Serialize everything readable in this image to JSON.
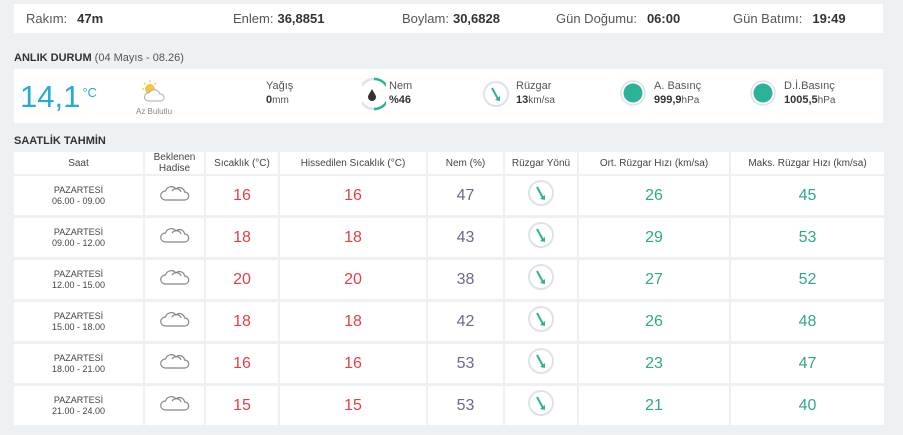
{
  "location": {
    "rakim_label": "Rakım:",
    "rakim_value": "47m",
    "enlem_label": "Enlem:",
    "enlem_value": "36,8851",
    "boylam_label": "Boylam:",
    "boylam_value": "30,6828",
    "gundogumu_label": "Gün Doğumu:",
    "gundogumu_value": "06:00",
    "gunbatimi_label": "Gün Batımı:",
    "gunbatimi_value": "19:49"
  },
  "current": {
    "title": "ANLIK DURUM",
    "subtitle": "(04 Mayıs - 08.26)",
    "temp": "14,1",
    "temp_unit": "°C",
    "condition": "Az Bulutlu",
    "yagis_label": "Yağış",
    "yagis_value": "0",
    "yagis_unit": "mm",
    "nem_label": "Nem",
    "nem_value": "%46",
    "ruzgar_label": "Rüzgar",
    "ruzgar_value": "13",
    "ruzgar_unit": "km/sa",
    "abasinc_label": "A. Basınç",
    "abasinc_value": "999,9",
    "abasinc_unit": "hPa",
    "dibasinc_label": "D.İ.Basınç",
    "dibasinc_value": "1005,5",
    "dibasinc_unit": "hPa",
    "accent": "#29a9d8",
    "pressure_color": "#2bb39a"
  },
  "hourly": {
    "title": "SAATLİK TAHMİN",
    "headers": {
      "saat": "Saat",
      "hadise_1": "Beklenen",
      "hadise_2": "Hadise",
      "sicaklik": "Sıcaklık (°C)",
      "hissedilen": "Hissedilen Sıcaklık (°C)",
      "nem": "Nem (%)",
      "yon": "Rüzgar Yönü",
      "ort": "Ort. Rüzgar Hızı (km/sa)",
      "maks": "Maks. Rüzgar Hızı (km/sa)"
    },
    "rows": [
      {
        "day": "PAZARTESİ",
        "time": "06.00 - 09.00",
        "icon": "cloud-icon",
        "temp": "16",
        "feels": "16",
        "hum": "47",
        "avg": "26",
        "max": "45"
      },
      {
        "day": "PAZARTESİ",
        "time": "09.00 - 12.00",
        "icon": "cloud-icon",
        "temp": "18",
        "feels": "18",
        "hum": "43",
        "avg": "29",
        "max": "53"
      },
      {
        "day": "PAZARTESİ",
        "time": "12.00 - 15.00",
        "icon": "cloud-icon",
        "temp": "20",
        "feels": "20",
        "hum": "38",
        "avg": "27",
        "max": "52"
      },
      {
        "day": "PAZARTESİ",
        "time": "15.00 - 18.00",
        "icon": "cloud-icon",
        "temp": "18",
        "feels": "18",
        "hum": "42",
        "avg": "26",
        "max": "48"
      },
      {
        "day": "PAZARTESİ",
        "time": "18.00 - 21.00",
        "icon": "cloud-icon",
        "temp": "16",
        "feels": "16",
        "hum": "53",
        "avg": "23",
        "max": "47"
      },
      {
        "day": "PAZARTESİ",
        "time": "21.00 - 24.00",
        "icon": "cloud-icon",
        "temp": "15",
        "feels": "15",
        "hum": "53",
        "avg": "21",
        "max": "40"
      }
    ]
  }
}
